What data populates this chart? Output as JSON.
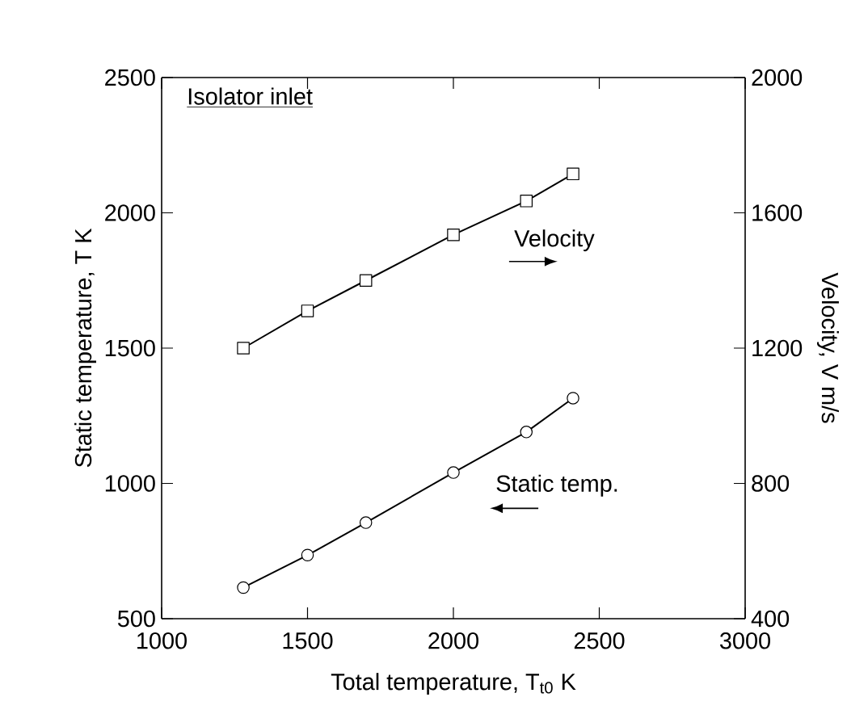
{
  "chart_data": {
    "type": "line",
    "title": "Isolator inlet",
    "xlabel": "Total temperature, T$_{t0}$ K",
    "ylabel": "Static temperature, T K",
    "y2label": "Velocity, V m/s",
    "x": [
      1280,
      1500,
      1700,
      2000,
      2250,
      2410
    ],
    "series": [
      {
        "name": "Static temp.",
        "color": "#000000",
        "marker": "circle",
        "axis": "y",
        "values": [
          615,
          735,
          855,
          1040,
          1190,
          1315
        ]
      },
      {
        "name": "Velocity",
        "color": "#000000",
        "marker": "square",
        "axis": "y2",
        "values": [
          1200,
          1310,
          1400,
          1535,
          1635,
          1715
        ]
      }
    ],
    "xlim": [
      1000,
      3000
    ],
    "xticks": [
      1000,
      1500,
      2000,
      2500,
      3000
    ],
    "ylim": [
      500,
      2500
    ],
    "yticks": [
      500,
      1000,
      1500,
      2000,
      2500
    ],
    "y2lim": [
      400,
      2000
    ],
    "y2ticks": [
      400,
      800,
      1200,
      1600,
      2000
    ],
    "grid": false,
    "legend": false,
    "line_style": "solid"
  }
}
